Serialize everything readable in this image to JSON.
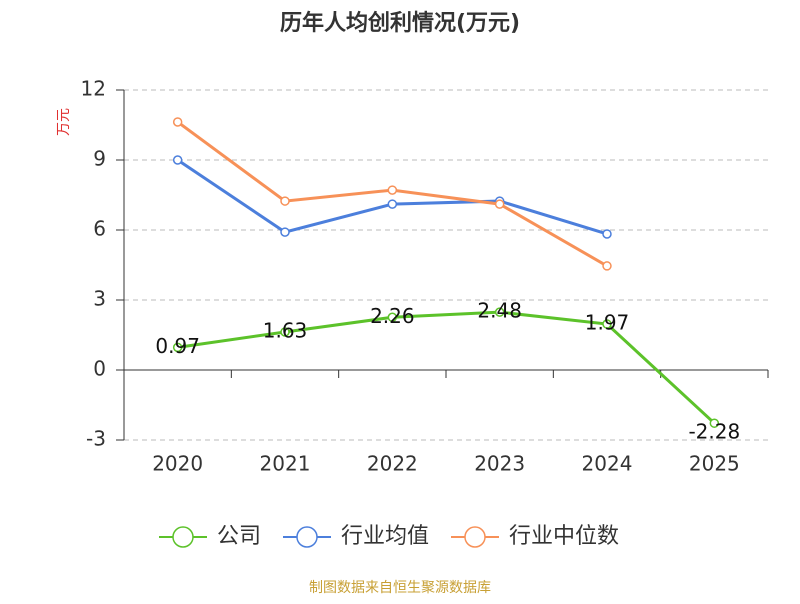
{
  "chart_data": {
    "type": "line",
    "title": "历年人均创利情况(万元)",
    "y_label": "万元",
    "source": "制图数据来自恒生聚源数据库",
    "categories": [
      "2020",
      "2021",
      "2022",
      "2023",
      "2024",
      "2025"
    ],
    "series": [
      {
        "name": "公司",
        "color": "#5cc22a",
        "values": [
          0.97,
          1.63,
          2.26,
          2.48,
          1.97,
          -2.28
        ],
        "show_labels": true
      },
      {
        "name": "行业均值",
        "color": "#4c7fdc",
        "values": [
          9.0,
          5.91,
          7.11,
          7.24,
          5.83,
          null
        ]
      },
      {
        "name": "行业中位数",
        "color": "#f79158",
        "values": [
          10.63,
          7.24,
          7.71,
          7.11,
          4.46,
          null
        ]
      }
    ],
    "ylim": [
      -3,
      12
    ],
    "yticks": [
      -3,
      0,
      3,
      6,
      9,
      12
    ],
    "grid": true,
    "legend": "bottom"
  }
}
